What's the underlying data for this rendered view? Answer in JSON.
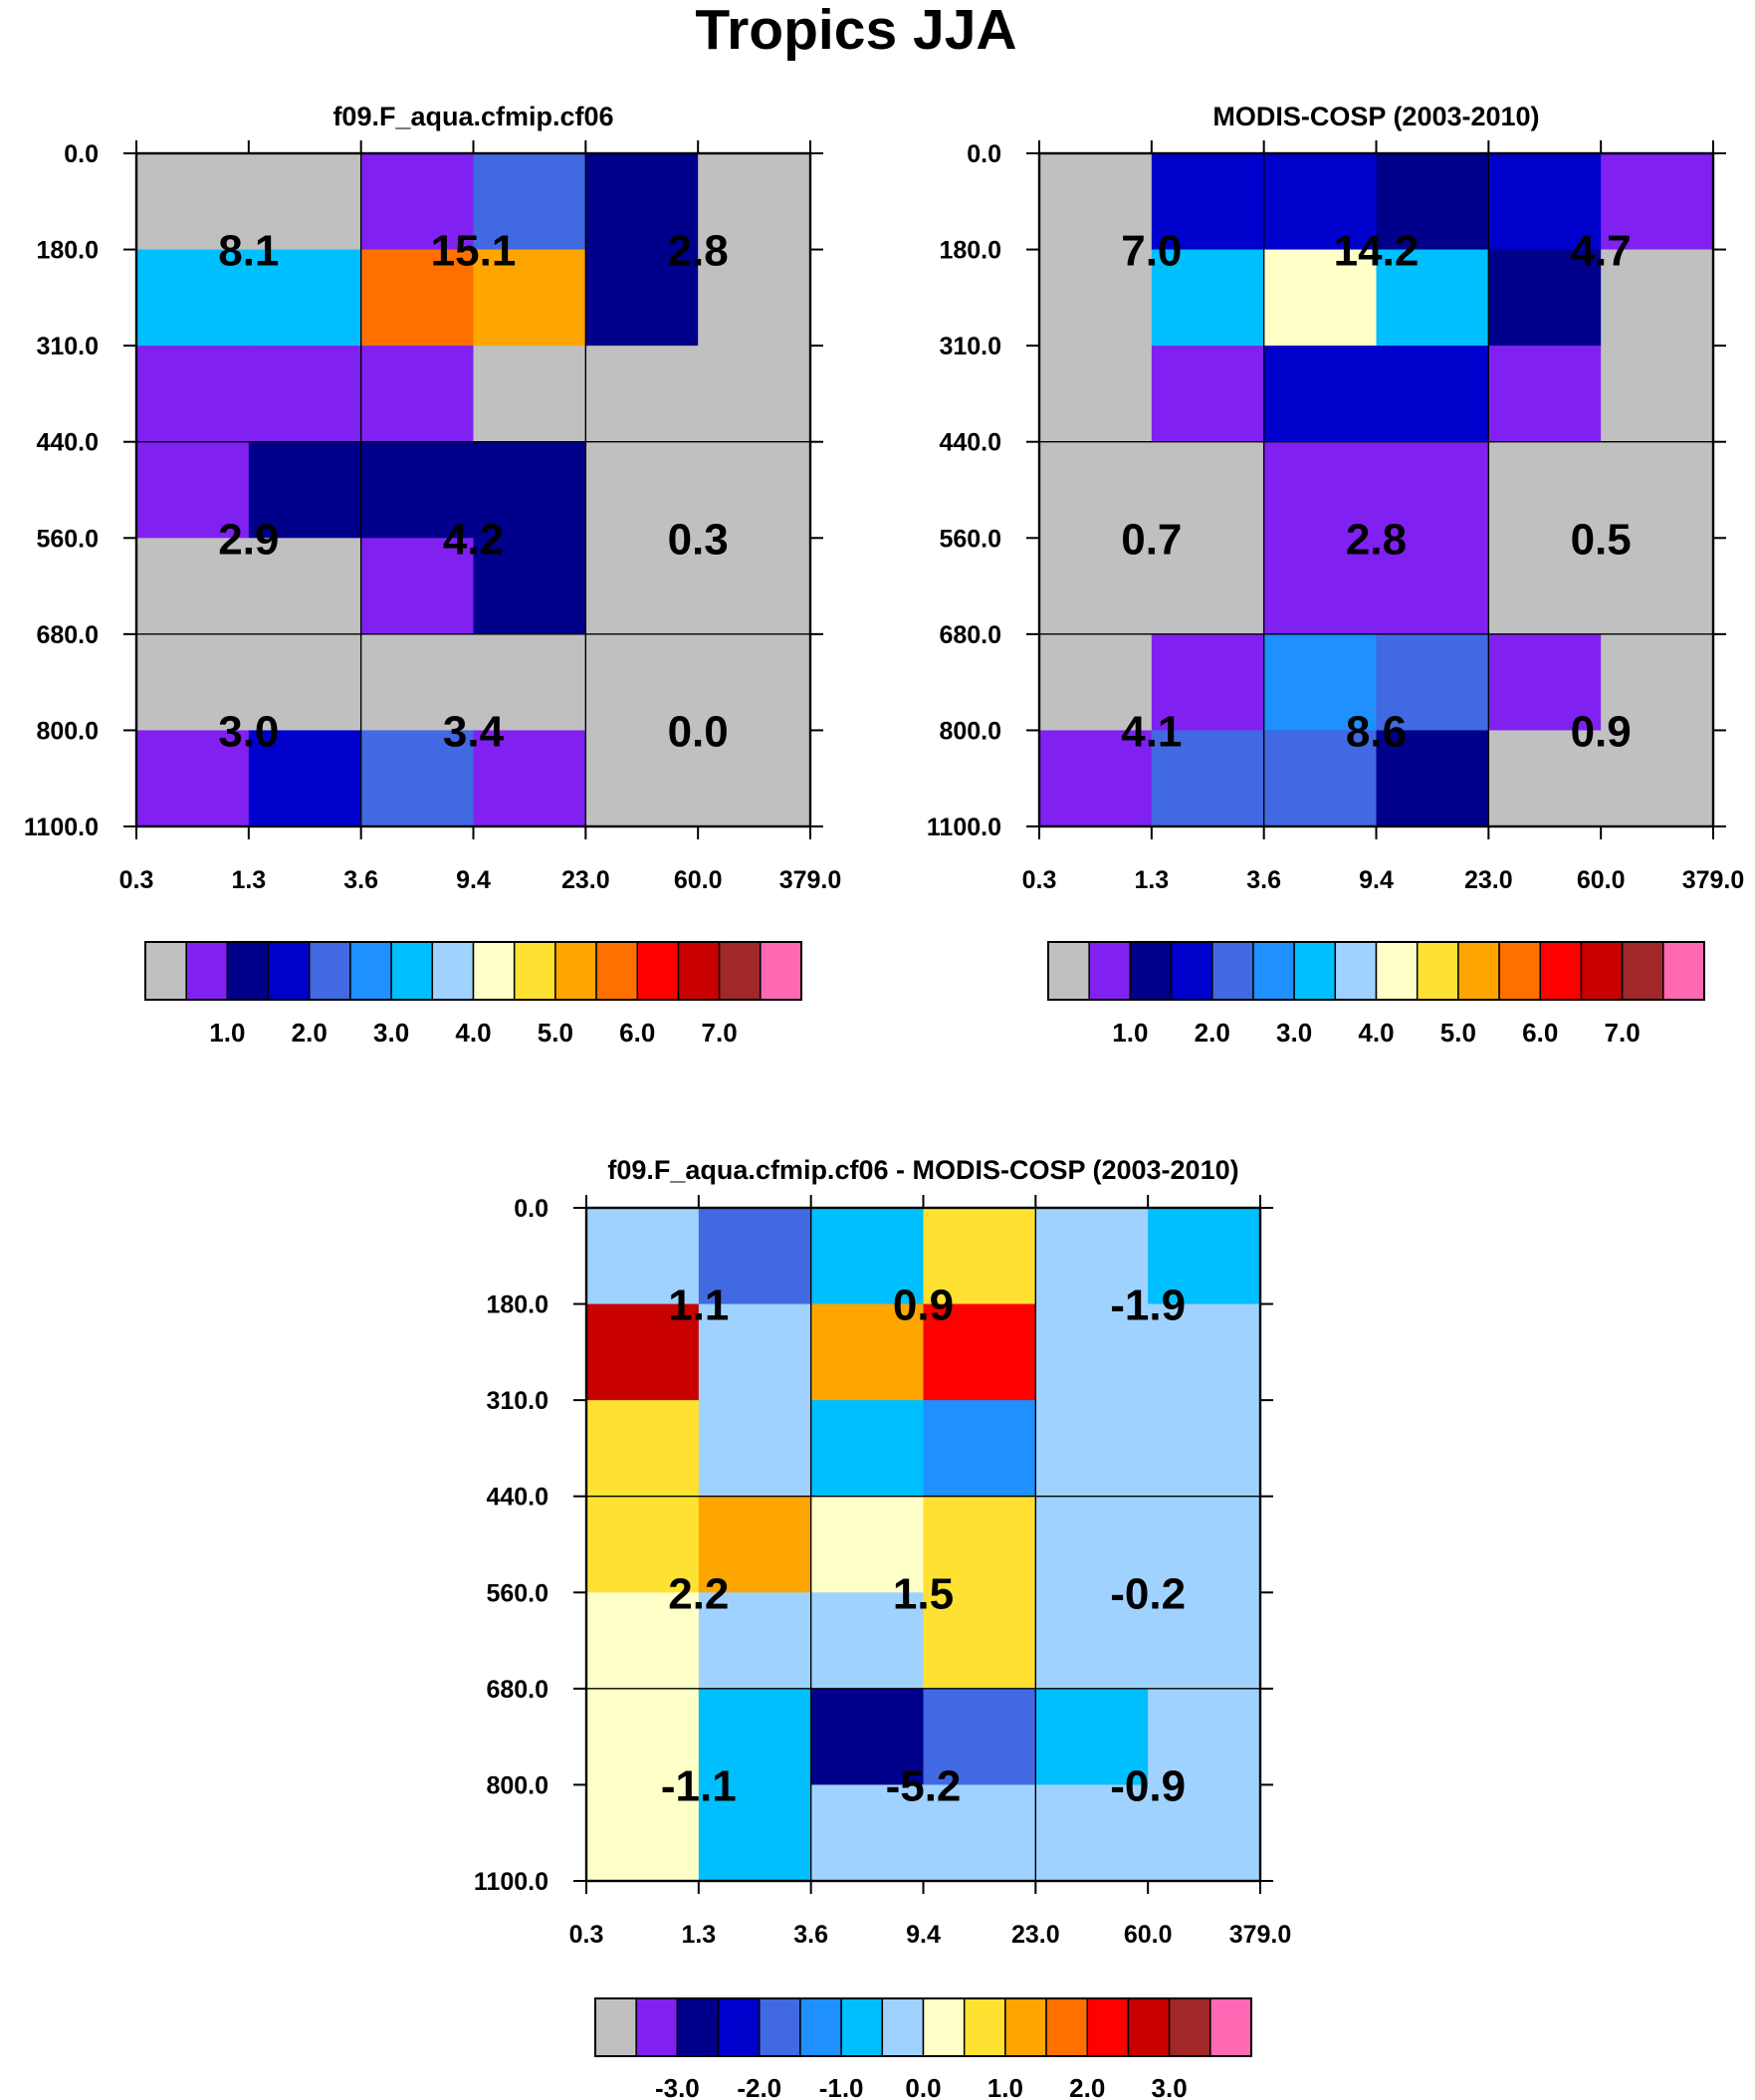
{
  "figure_title": "Tropics JJA",
  "chart_data": [
    {
      "type": "heatmap",
      "title": "f09.F_aqua.cfmip.cf06",
      "x_ticks": [
        "0.3",
        "1.3",
        "3.6",
        "9.4",
        "23.0",
        "60.0",
        "379.0"
      ],
      "y_ticks": [
        "0.0",
        "180.0",
        "310.0",
        "440.0",
        "560.0",
        "680.0",
        "800.0",
        "1100.0"
      ],
      "cell_colors": [
        [
          "#c0c0c0",
          "#c0c0c0",
          "#8021f2",
          "#4169e1",
          "#00008b",
          "#c0c0c0"
        ],
        [
          "#00bfff",
          "#00bfff",
          "#ff7000",
          "#ffa500",
          "#00008b",
          "#c0c0c0"
        ],
        [
          "#8021f2",
          "#8021f2",
          "#8021f2",
          "#c0c0c0",
          "#c0c0c0",
          "#c0c0c0"
        ],
        [
          "#8021f2",
          "#00008b",
          "#00008b",
          "#00008b",
          "#c0c0c0",
          "#c0c0c0"
        ],
        [
          "#c0c0c0",
          "#c0c0c0",
          "#8021f2",
          "#00008b",
          "#c0c0c0",
          "#c0c0c0"
        ],
        [
          "#c0c0c0",
          "#c0c0c0",
          "#c0c0c0",
          "#c0c0c0",
          "#c0c0c0",
          "#c0c0c0"
        ],
        [
          "#8021f2",
          "#0000cd",
          "#4169e1",
          "#8021f2",
          "#c0c0c0",
          "#c0c0c0"
        ]
      ],
      "values": [
        [
          "8.1",
          "15.1",
          "2.8"
        ],
        [
          "2.9",
          "4.2",
          "0.3"
        ],
        [
          "3.0",
          "3.4",
          "0.0"
        ]
      ]
    },
    {
      "type": "heatmap",
      "title": "MODIS-COSP (2003-2010)",
      "x_ticks": [
        "0.3",
        "1.3",
        "3.6",
        "9.4",
        "23.0",
        "60.0",
        "379.0"
      ],
      "y_ticks": [
        "0.0",
        "180.0",
        "310.0",
        "440.0",
        "560.0",
        "680.0",
        "800.0",
        "1100.0"
      ],
      "cell_colors": [
        [
          "#c0c0c0",
          "#0000cd",
          "#0000cd",
          "#00008b",
          "#0000cd",
          "#8021f2"
        ],
        [
          "#c0c0c0",
          "#00bfff",
          "#ffffc8",
          "#00bfff",
          "#00008b",
          "#c0c0c0"
        ],
        [
          "#c0c0c0",
          "#8021f2",
          "#0000cd",
          "#0000cd",
          "#8021f2",
          "#c0c0c0"
        ],
        [
          "#c0c0c0",
          "#c0c0c0",
          "#8021f2",
          "#8021f2",
          "#c0c0c0",
          "#c0c0c0"
        ],
        [
          "#c0c0c0",
          "#c0c0c0",
          "#8021f2",
          "#8021f2",
          "#c0c0c0",
          "#c0c0c0"
        ],
        [
          "#c0c0c0",
          "#8021f2",
          "#1e90ff",
          "#4169e1",
          "#8021f2",
          "#c0c0c0"
        ],
        [
          "#8021f2",
          "#4169e1",
          "#4169e1",
          "#00008b",
          "#c0c0c0",
          "#c0c0c0"
        ]
      ],
      "values": [
        [
          "7.0",
          "14.2",
          "4.7"
        ],
        [
          "0.7",
          "2.8",
          "0.5"
        ],
        [
          "4.1",
          "8.6",
          "0.9"
        ]
      ]
    },
    {
      "type": "heatmap",
      "title": "f09.F_aqua.cfmip.cf06 - MODIS-COSP (2003-2010)",
      "x_ticks": [
        "0.3",
        "1.3",
        "3.6",
        "9.4",
        "23.0",
        "60.0",
        "379.0"
      ],
      "y_ticks": [
        "0.0",
        "180.0",
        "310.0",
        "440.0",
        "560.0",
        "680.0",
        "800.0",
        "1100.0"
      ],
      "cell_colors": [
        [
          "#a0d2ff",
          "#4169e1",
          "#00bfff",
          "#ffe132",
          "#a0d2ff",
          "#00bfff"
        ],
        [
          "#c80000",
          "#a0d2ff",
          "#ffa500",
          "#ff0000",
          "#a0d2ff",
          "#a0d2ff"
        ],
        [
          "#ffe132",
          "#a0d2ff",
          "#00bfff",
          "#1e90ff",
          "#a0d2ff",
          "#a0d2ff"
        ],
        [
          "#ffe132",
          "#ffa500",
          "#ffffc8",
          "#ffe132",
          "#a0d2ff",
          "#a0d2ff"
        ],
        [
          "#ffffc8",
          "#a0d2ff",
          "#a0d2ff",
          "#ffe132",
          "#a0d2ff",
          "#a0d2ff"
        ],
        [
          "#ffffc8",
          "#00bfff",
          "#00008b",
          "#4169e1",
          "#00bfff",
          "#a0d2ff"
        ],
        [
          "#ffffc8",
          "#00bfff",
          "#a0d2ff",
          "#a0d2ff",
          "#a0d2ff",
          "#a0d2ff"
        ]
      ],
      "values": [
        [
          "1.1",
          "0.9",
          "-1.9"
        ],
        [
          "2.2",
          "1.5",
          "-0.2"
        ],
        [
          "-1.1",
          "-5.2",
          "-0.9"
        ]
      ]
    }
  ],
  "colorbars": [
    {
      "colors": [
        "#c0c0c0",
        "#8021f2",
        "#00008b",
        "#0000cd",
        "#4169e1",
        "#1e90ff",
        "#00bfff",
        "#a0d2ff",
        "#ffffc8",
        "#ffe132",
        "#ffa500",
        "#ff7000",
        "#ff0000",
        "#c80000",
        "#a02828",
        "#ff69b4"
      ],
      "labels": [
        "1.0",
        "2.0",
        "3.0",
        "4.0",
        "5.0",
        "6.0",
        "7.0"
      ]
    },
    {
      "colors": [
        "#c0c0c0",
        "#8021f2",
        "#00008b",
        "#0000cd",
        "#4169e1",
        "#1e90ff",
        "#00bfff",
        "#a0d2ff",
        "#ffffc8",
        "#ffe132",
        "#ffa500",
        "#ff7000",
        "#ff0000",
        "#c80000",
        "#a02828",
        "#ff69b4"
      ],
      "labels": [
        "1.0",
        "2.0",
        "3.0",
        "4.0",
        "5.0",
        "6.0",
        "7.0"
      ]
    },
    {
      "colors": [
        "#c0c0c0",
        "#8021f2",
        "#00008b",
        "#0000cd",
        "#4169e1",
        "#1e90ff",
        "#00bfff",
        "#a0d2ff",
        "#ffffc8",
        "#ffe132",
        "#ffa500",
        "#ff7000",
        "#ff0000",
        "#c80000",
        "#a02828",
        "#ff69b4"
      ],
      "labels": [
        "-3.0",
        "-2.0",
        "-1.0",
        "0.0",
        "1.0",
        "2.0",
        "3.0"
      ]
    }
  ]
}
